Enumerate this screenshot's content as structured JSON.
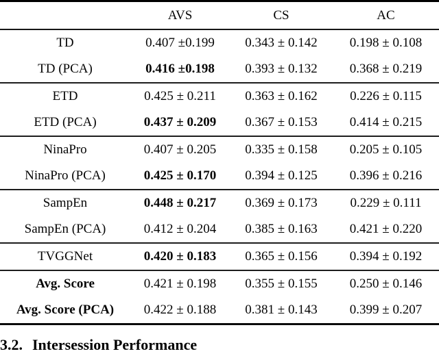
{
  "page": {
    "background": "#ffffff",
    "text_color": "#050505",
    "rule_color": "#000000"
  },
  "table": {
    "columns": [
      "",
      "AVS",
      "CS",
      "AC"
    ],
    "sections": [
      {
        "rows": [
          {
            "label": "TD",
            "bold_label": false,
            "cells": [
              {
                "text": "0.407 ±0.199",
                "bold": false
              },
              {
                "text": "0.343 ± 0.142",
                "bold": false
              },
              {
                "text": "0.198 ± 0.108",
                "bold": false
              }
            ]
          },
          {
            "label": "TD (PCA)",
            "bold_label": false,
            "cells": [
              {
                "text": "0.416 ±0.198",
                "bold": true
              },
              {
                "text": "0.393 ± 0.132",
                "bold": false
              },
              {
                "text": "0.368 ± 0.219",
                "bold": false
              }
            ]
          }
        ]
      },
      {
        "rows": [
          {
            "label": "ETD",
            "bold_label": false,
            "cells": [
              {
                "text": "0.425 ± 0.211",
                "bold": false
              },
              {
                "text": "0.363 ± 0.162",
                "bold": false
              },
              {
                "text": "0.226 ± 0.115",
                "bold": false
              }
            ]
          },
          {
            "label": "ETD (PCA)",
            "bold_label": false,
            "cells": [
              {
                "text": "0.437 ± 0.209",
                "bold": true
              },
              {
                "text": "0.367 ± 0.153",
                "bold": false
              },
              {
                "text": "0.414 ± 0.215",
                "bold": false
              }
            ]
          }
        ]
      },
      {
        "rows": [
          {
            "label": "NinaPro",
            "bold_label": false,
            "cells": [
              {
                "text": "0.407 ± 0.205",
                "bold": false
              },
              {
                "text": "0.335 ± 0.158",
                "bold": false
              },
              {
                "text": "0.205 ± 0.105",
                "bold": false
              }
            ]
          },
          {
            "label": "NinaPro (PCA)",
            "bold_label": false,
            "cells": [
              {
                "text": "0.425 ± 0.170",
                "bold": true
              },
              {
                "text": "0.394 ± 0.125",
                "bold": false
              },
              {
                "text": "0.396 ± 0.216",
                "bold": false
              }
            ]
          }
        ]
      },
      {
        "rows": [
          {
            "label": "SampEn",
            "bold_label": false,
            "cells": [
              {
                "text": "0.448 ± 0.217",
                "bold": true
              },
              {
                "text": "0.369 ± 0.173",
                "bold": false
              },
              {
                "text": "0.229 ± 0.111",
                "bold": false
              }
            ]
          },
          {
            "label": "SampEn (PCA)",
            "bold_label": false,
            "cells": [
              {
                "text": "0.412 ± 0.204",
                "bold": false
              },
              {
                "text": "0.385 ± 0.163",
                "bold": false
              },
              {
                "text": "0.421 ± 0.220",
                "bold": false
              }
            ]
          }
        ]
      },
      {
        "rows": [
          {
            "label": "TVGGNet",
            "bold_label": false,
            "cells": [
              {
                "text": "0.420 ± 0.183",
                "bold": true
              },
              {
                "text": "0.365 ± 0.156",
                "bold": false
              },
              {
                "text": "0.394 ± 0.192",
                "bold": false
              }
            ]
          }
        ]
      },
      {
        "rows": [
          {
            "label": "Avg. Score",
            "bold_label": true,
            "cells": [
              {
                "text": "0.421 ± 0.198",
                "bold": false
              },
              {
                "text": "0.355 ± 0.155",
                "bold": false
              },
              {
                "text": "0.250 ± 0.146",
                "bold": false
              }
            ]
          },
          {
            "label": "Avg. Score (PCA)",
            "bold_label": true,
            "cells": [
              {
                "text": "0.422 ± 0.188",
                "bold": false
              },
              {
                "text": "0.381 ± 0.143",
                "bold": false
              },
              {
                "text": "0.399 ± 0.207",
                "bold": false
              }
            ]
          }
        ]
      }
    ]
  },
  "heading": {
    "number": "3.2.",
    "title": "Intersession Performance"
  }
}
